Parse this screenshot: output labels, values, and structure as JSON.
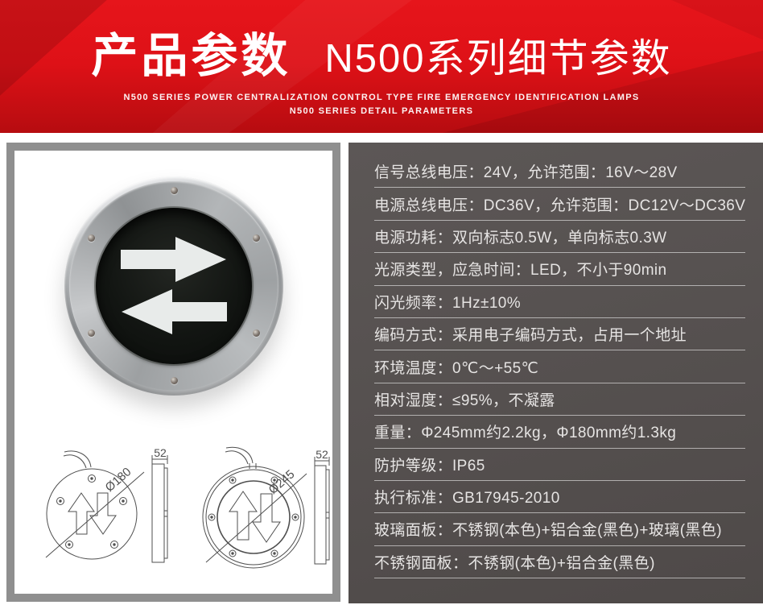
{
  "header": {
    "title_zh": "产品参数",
    "subtitle_zh": "N500系列细节参数",
    "subtitle_en_line1": "N500 SERIES POWER CENTRALIZATION CONTROL TYPE FIRE EMERGENCY IDENTIFICATION LAMPS",
    "subtitle_en_line2": "N500 SERIES DETAIL PARAMETERS",
    "bg_color": "#de1117"
  },
  "product_panel": {
    "photo": {
      "top_arrow_direction": "right",
      "bottom_arrow_direction": "left",
      "face_color": "#121512",
      "arrow_color": "#e8ebea"
    },
    "drawings": [
      {
        "diameter_label": "Ø180",
        "thickness_label": "52"
      },
      {
        "diameter_label": "Ø245",
        "thickness_label": "52"
      }
    ]
  },
  "specs": {
    "colon": "：",
    "panel_bg": "#565150",
    "text_color": "#e6e4e3",
    "rows": [
      {
        "label": "信号总线电压",
        "value": "24V，允许范围：16V～28V"
      },
      {
        "label": "电源总线电压",
        "value": "DC36V，允许范围：DC12V～DC36V"
      },
      {
        "label": "电源功耗",
        "value": "双向标志0.5W，单向标志0.3W"
      },
      {
        "label": "光源类型，应急时间",
        "value": "LED，不小于90min"
      },
      {
        "label": "闪光频率",
        "value": "1Hz±10%"
      },
      {
        "label": "编码方式",
        "value": "采用电子编码方式，占用一个地址"
      },
      {
        "label": "环境温度",
        "value": "0℃～+55℃"
      },
      {
        "label": "相对湿度",
        "value": "≤95%，不凝露"
      },
      {
        "label": "重量",
        "value": "Φ245mm约2.2kg，Φ180mm约1.3kg"
      },
      {
        "label": "防护等级",
        "value": "IP65"
      },
      {
        "label": "执行标准",
        "value": "GB17945-2010"
      },
      {
        "label": "玻璃面板",
        "value": "不锈钢(本色)+铝合金(黑色)+玻璃(黑色)"
      },
      {
        "label": "不锈钢面板",
        "value": "不锈钢(本色)+铝合金(黑色)"
      }
    ]
  }
}
